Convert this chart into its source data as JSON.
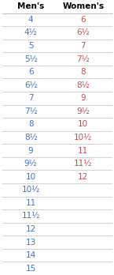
{
  "header_mens": "Men's",
  "header_womens": "Women's",
  "mens_sizes": [
    "4",
    "4½",
    "5",
    "5½",
    "6",
    "6½",
    "7",
    "7½",
    "8",
    "8½",
    "9",
    "9½",
    "10",
    "10½",
    "11",
    "11½",
    "12",
    "13",
    "14",
    "15"
  ],
  "womens_sizes": [
    "6",
    "6½",
    "7",
    "7½",
    "8",
    "8½",
    "9",
    "9½",
    "10",
    "10½",
    "11",
    "11½",
    "12",
    "",
    "",
    "",
    "",
    "",
    "",
    ""
  ],
  "mens_color": "#4472c4",
  "womens_color": "#c0504d",
  "header_color": "#000000",
  "bg_color": "#ffffff",
  "line_color": "#c0c0c0",
  "header_fontsize": 7.5,
  "data_fontsize": 7.5
}
